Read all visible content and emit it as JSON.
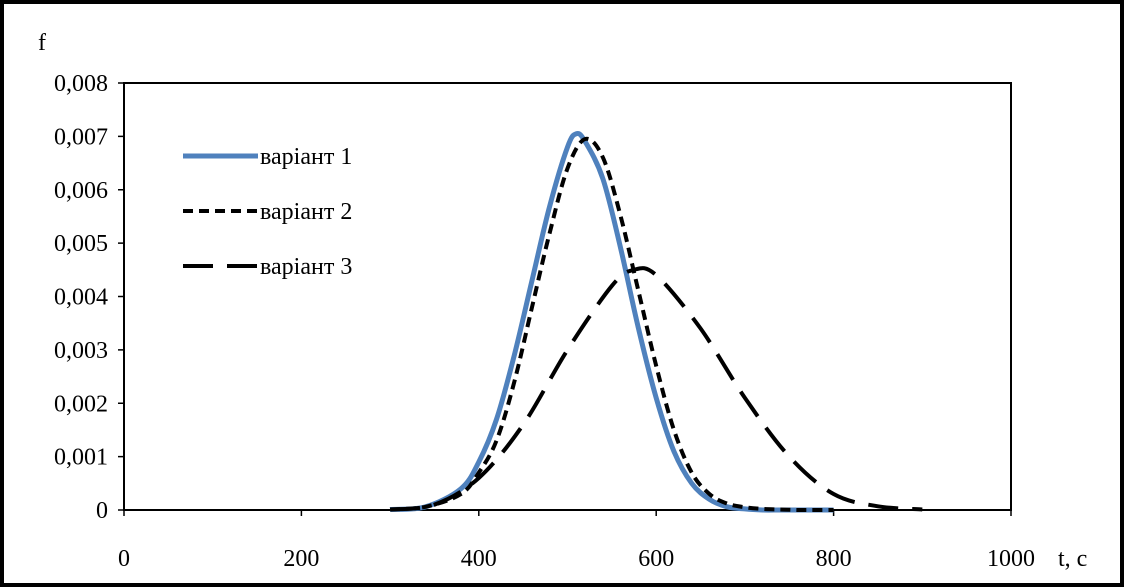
{
  "chart_data": {
    "type": "line",
    "title": "",
    "ylabel": "f",
    "xlabel": "t, c",
    "xlim": [
      0,
      1000
    ],
    "ylim": [
      0,
      0.008
    ],
    "x_ticks": [
      0,
      200,
      400,
      600,
      800,
      1000
    ],
    "x_tick_labels": [
      "0",
      "200",
      "400",
      "600",
      "800",
      "1000"
    ],
    "y_ticks": [
      0,
      0.001,
      0.002,
      0.003,
      0.004,
      0.005,
      0.006,
      0.007,
      0.008
    ],
    "y_tick_labels": [
      "0",
      "0,001",
      "0,002",
      "0,003",
      "0,004",
      "0,005",
      "0,006",
      "0,007",
      "0,008"
    ],
    "grid": false,
    "legend_position": "top-left",
    "series": [
      {
        "name": "варіант 1",
        "color": "#4f81bd",
        "style": "solid",
        "x": [
          300,
          340,
          380,
          400,
          420,
          440,
          460,
          480,
          500,
          510,
          520,
          540,
          560,
          580,
          600,
          620,
          640,
          660,
          680,
          700,
          720,
          740,
          760,
          780,
          800
        ],
        "y": [
          1e-05,
          6e-05,
          0.0004,
          0.0009,
          0.0017,
          0.0029,
          0.0043,
          0.0057,
          0.0068,
          0.00705,
          0.0069,
          0.0062,
          0.0049,
          0.0034,
          0.0021,
          0.0011,
          0.0005,
          0.0002,
          6e-05,
          2e-05,
          0,
          0,
          0,
          0,
          0
        ]
      },
      {
        "name": "варіант 2",
        "color": "#000000",
        "style": "short-dash",
        "x": [
          300,
          340,
          380,
          400,
          420,
          440,
          460,
          480,
          500,
          520,
          540,
          560,
          580,
          600,
          620,
          640,
          660,
          680,
          700,
          720,
          740,
          760,
          780,
          800
        ],
        "y": [
          1e-05,
          6e-05,
          0.0003,
          0.0007,
          0.0013,
          0.0024,
          0.0038,
          0.0052,
          0.0064,
          0.00695,
          0.0066,
          0.0055,
          0.0041,
          0.0027,
          0.0015,
          0.0007,
          0.0003,
          0.00012,
          5e-05,
          2e-05,
          1e-05,
          0,
          0,
          0
        ]
      },
      {
        "name": "варіант 3",
        "color": "#000000",
        "style": "long-dash",
        "x": [
          300,
          350,
          400,
          450,
          500,
          550,
          575,
          600,
          650,
          700,
          750,
          800,
          850,
          900
        ],
        "y": [
          1e-05,
          0.0001,
          0.0006,
          0.0016,
          0.003,
          0.0042,
          0.0045,
          0.0044,
          0.0034,
          0.0021,
          0.001,
          0.0003,
          7e-05,
          1e-05
        ]
      }
    ]
  }
}
